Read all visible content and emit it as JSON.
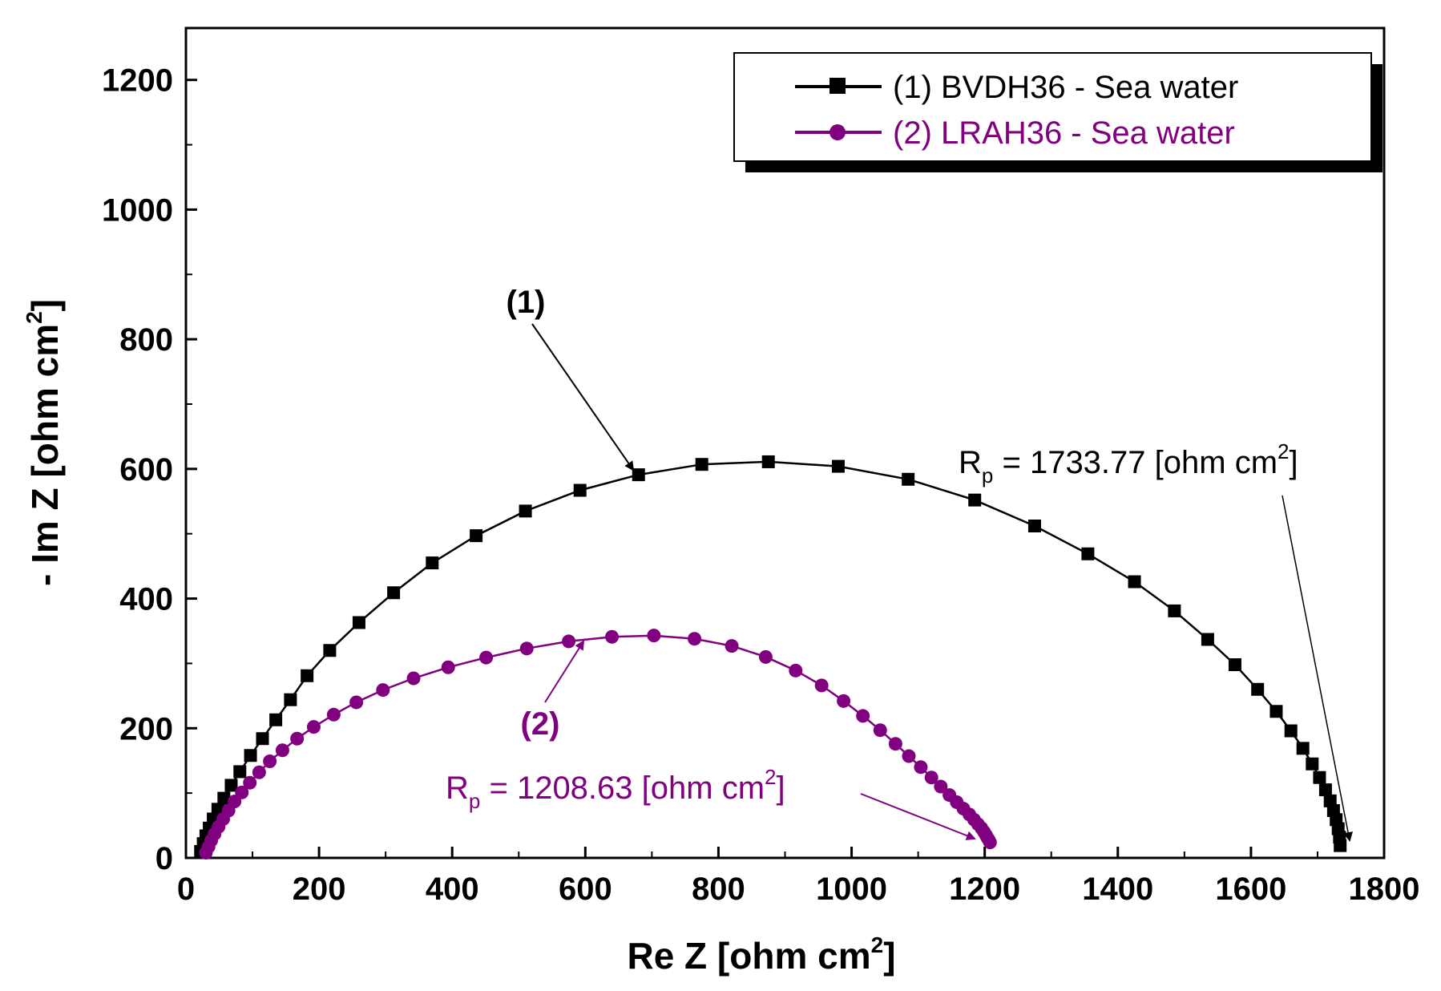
{
  "chart_data": {
    "type": "scatter",
    "xlabel": "Re Z [ohm cm",
    "xlabel_sup": "2",
    "xlabel_end": "]",
    "ylabel": "- Im Z [ohm cm",
    "ylabel_sup": "2",
    "ylabel_end": "]",
    "xlim": [
      0,
      1800
    ],
    "ylim": [
      0,
      1280
    ],
    "xticks": [
      0,
      200,
      400,
      600,
      800,
      1000,
      1200,
      1400,
      1600,
      1800
    ],
    "yticks": [
      0,
      200,
      400,
      600,
      800,
      1000,
      1200
    ],
    "grid": false,
    "legend_position": "top-right",
    "series": [
      {
        "name": "(1) BVDH36 - Sea water",
        "color": "#000000",
        "marker": "square",
        "x": [
          22,
          26,
          30,
          35,
          41,
          48,
          57,
          68,
          81,
          97,
          115,
          135,
          157,
          182,
          216,
          260,
          312,
          370,
          436,
          510,
          592,
          680,
          775,
          875,
          980,
          1085,
          1185,
          1275,
          1355,
          1425,
          1485,
          1535,
          1576,
          1610,
          1638,
          1660,
          1678,
          1692,
          1703,
          1712,
          1719,
          1724,
          1728,
          1731,
          1733,
          1734
        ],
        "y": [
          10,
          22,
          34,
          46,
          60,
          75,
          92,
          112,
          133,
          158,
          184,
          213,
          244,
          281,
          320,
          363,
          409,
          455,
          497,
          535,
          567,
          591,
          607,
          611,
          604,
          584,
          552,
          512,
          469,
          426,
          381,
          337,
          298,
          260,
          226,
          196,
          169,
          145,
          124,
          105,
          88,
          73,
          59,
          45,
          32,
          19
        ]
      },
      {
        "name": "(2) LRAH36 - Sea water",
        "color": "#800080",
        "marker": "circle",
        "x": [
          30,
          34,
          38,
          43,
          49,
          56,
          64,
          73,
          84,
          96,
          110,
          126,
          145,
          167,
          192,
          222,
          256,
          296,
          342,
          394,
          451,
          512,
          575,
          640,
          703,
          764,
          820,
          871,
          916,
          955,
          988,
          1017,
          1043,
          1066,
          1086,
          1104,
          1120,
          1134,
          1147,
          1158,
          1168,
          1177,
          1184,
          1190,
          1195,
          1199,
          1202,
          1204,
          1206,
          1208
        ],
        "y": [
          8,
          17,
          27,
          37,
          48,
          60,
          73,
          87,
          101,
          116,
          132,
          149,
          166,
          184,
          202,
          221,
          240,
          259,
          277,
          294,
          309,
          323,
          334,
          341,
          343,
          338,
          327,
          310,
          289,
          266,
          242,
          219,
          197,
          176,
          157,
          140,
          124,
          110,
          97,
          86,
          76,
          67,
          59,
          52,
          46,
          40,
          35,
          31,
          28,
          24
        ]
      }
    ],
    "annotations": {
      "label1": "(1)",
      "label2": "(2)",
      "rp1_prefix": "R",
      "rp1_sub": "p",
      "rp1_text": " = 1733.77  [ohm cm",
      "rp1_sup": "2",
      "rp1_end": "]",
      "rp2_prefix": "R",
      "rp2_sub": "p",
      "rp2_text": " = 1208.63 [ohm cm",
      "rp2_sup": "2",
      "rp2_end": "]"
    }
  }
}
